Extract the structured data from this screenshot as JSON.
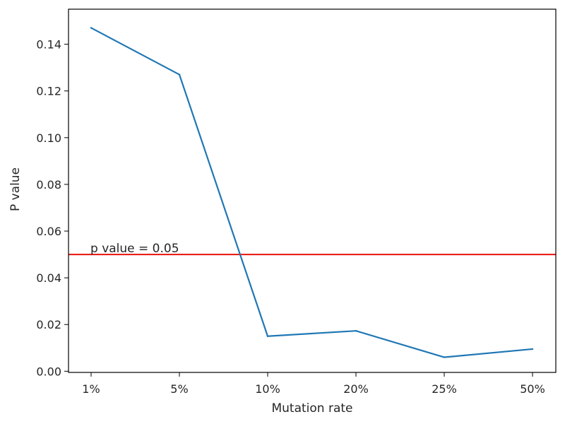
{
  "chart_data": {
    "type": "line",
    "xlabel": "Mutation rate",
    "ylabel": "P value",
    "categories": [
      "1%",
      "5%",
      "10%",
      "20%",
      "25%",
      "50%"
    ],
    "series": [
      {
        "values": [
          0.147,
          0.127,
          0.015,
          0.0173,
          0.006,
          0.0095
        ]
      }
    ],
    "ylim": [
      -0.0005,
      0.155
    ],
    "yticks": [
      0.0,
      0.02,
      0.04,
      0.06,
      0.08,
      0.1,
      0.12,
      0.14
    ],
    "ytick_labels": [
      "0.00",
      "0.02",
      "0.04",
      "0.06",
      "0.08",
      "0.10",
      "0.12",
      "0.14"
    ],
    "reference_line": {
      "y": 0.05,
      "label": "p value = 0.05"
    },
    "grid": false,
    "colors": {
      "series": "#1f77b4",
      "reference_line": "#e8130c",
      "axes": "#000000"
    }
  }
}
